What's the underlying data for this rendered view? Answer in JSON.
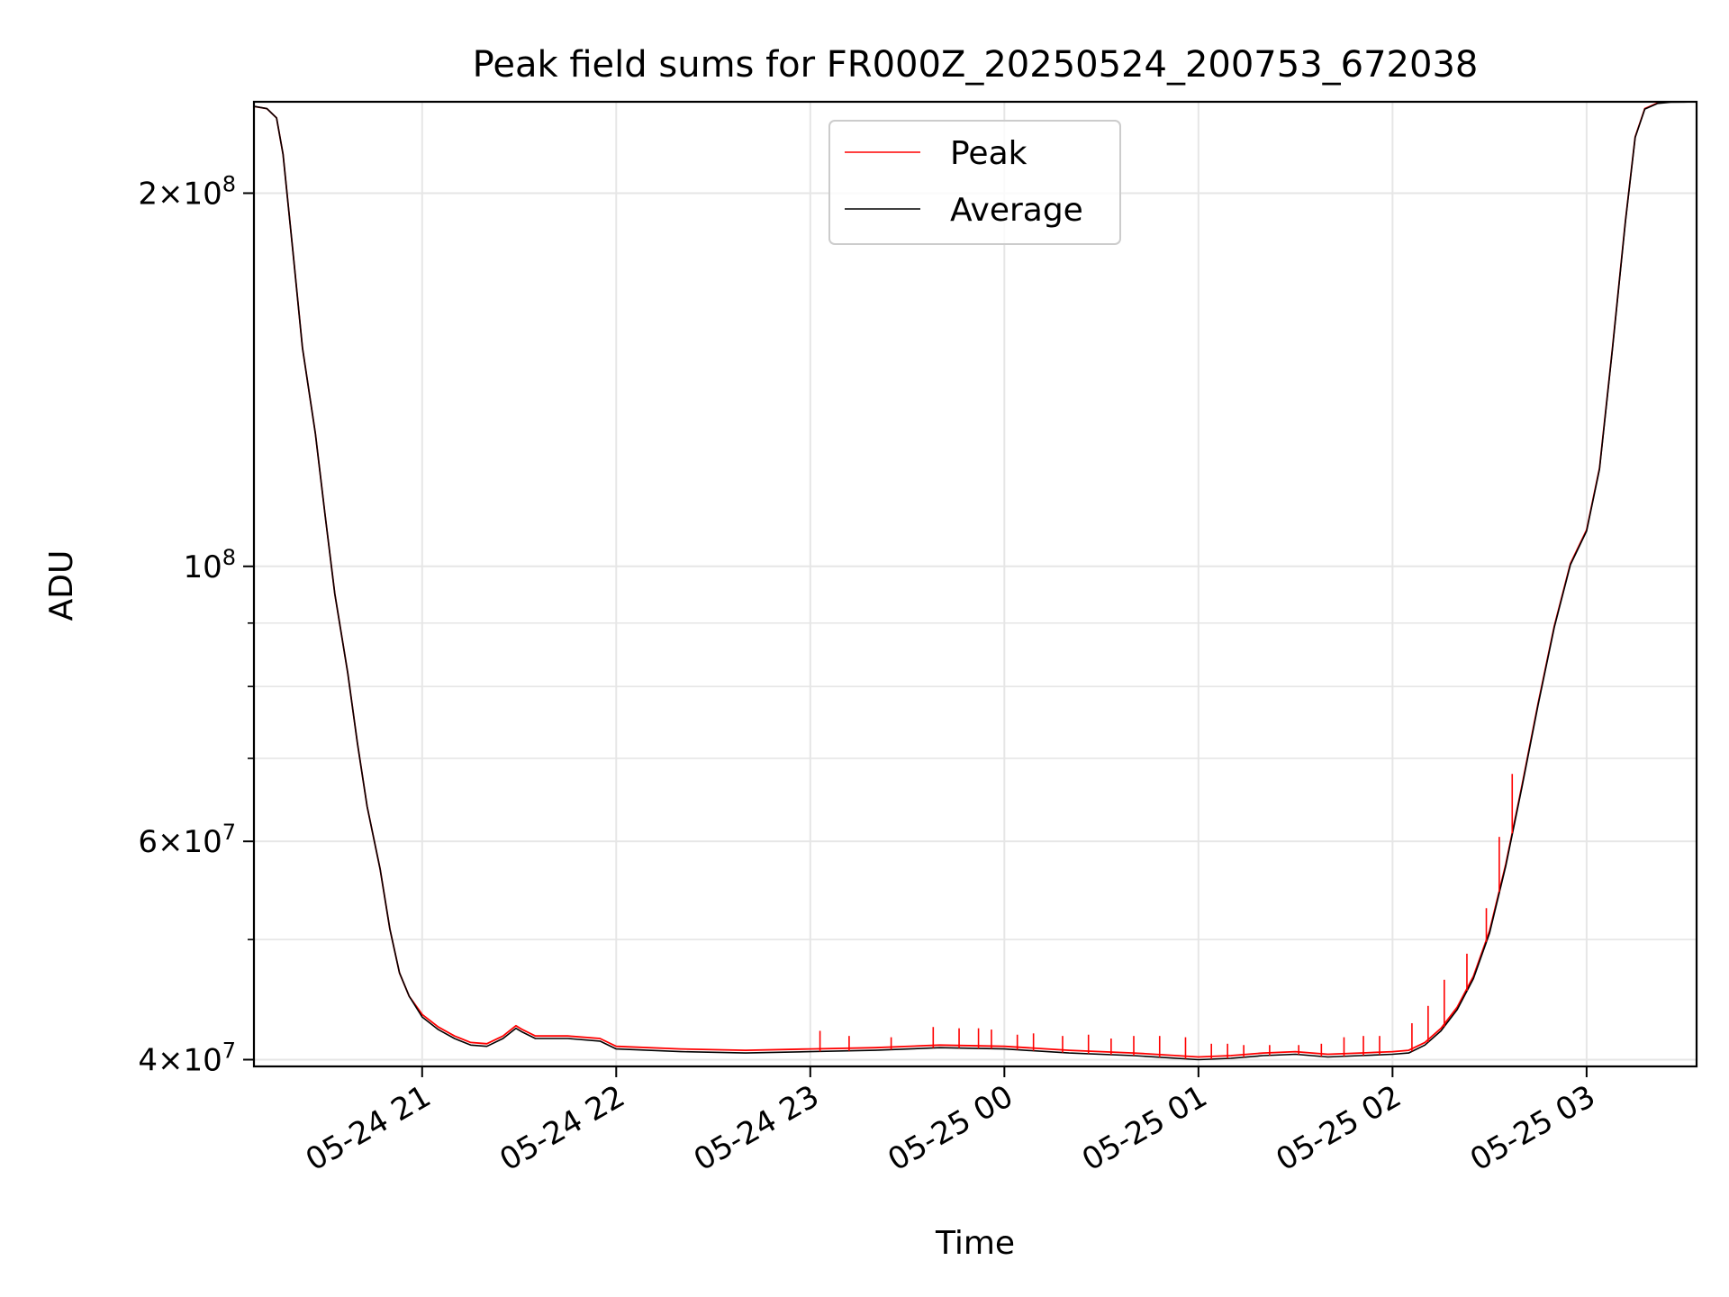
{
  "chart_data": {
    "type": "line",
    "title": "Peak field sums for FR000Z_20250524_200753_672038",
    "xlabel": "Time",
    "ylabel": "ADU",
    "y_scale": "log",
    "ylim": [
      39500000,
      237000000
    ],
    "xlim": [
      "2025-05-24 20:08",
      "2025-05-25 03:34"
    ],
    "x_ticks": [
      {
        "label": "05-24 21",
        "t": "2025-05-24 21:00"
      },
      {
        "label": "05-24 22",
        "t": "2025-05-24 22:00"
      },
      {
        "label": "05-24 23",
        "t": "2025-05-24 23:00"
      },
      {
        "label": "05-25 00",
        "t": "2025-05-25 00:00"
      },
      {
        "label": "05-25 01",
        "t": "2025-05-25 01:00"
      },
      {
        "label": "05-25 02",
        "t": "2025-05-25 02:00"
      },
      {
        "label": "05-25 03",
        "t": "2025-05-25 03:00"
      }
    ],
    "y_major_ticks": [
      {
        "label_base": "4",
        "label_mult": "×",
        "label_pow": "10",
        "label_exp": "7",
        "value": 40000000
      },
      {
        "label_base": "6",
        "label_mult": "×",
        "label_pow": "10",
        "label_exp": "7",
        "value": 60000000
      },
      {
        "label_base": "",
        "label_mult": "",
        "label_pow": "10",
        "label_exp": "8",
        "value": 100000000
      },
      {
        "label_base": "2",
        "label_mult": "×",
        "label_pow": "10",
        "label_exp": "8",
        "value": 200000000
      }
    ],
    "y_minor_ticks": [
      50000000,
      70000000,
      80000000,
      90000000
    ],
    "grid": true,
    "legend": {
      "location": "upper center"
    },
    "series": [
      {
        "name": "Peak",
        "color": "#ff0000",
        "x": [
          "2025-05-24 20:08",
          "2025-05-24 20:12",
          "2025-05-24 20:15",
          "2025-05-24 20:17",
          "2025-05-24 20:20",
          "2025-05-24 20:23",
          "2025-05-24 20:27",
          "2025-05-24 20:30",
          "2025-05-24 20:33",
          "2025-05-24 20:37",
          "2025-05-24 20:40",
          "2025-05-24 20:43",
          "2025-05-24 20:47",
          "2025-05-24 20:50",
          "2025-05-24 20:53",
          "2025-05-24 20:56",
          "2025-05-24 21:00",
          "2025-05-24 21:05",
          "2025-05-24 21:10",
          "2025-05-24 21:15",
          "2025-05-24 21:20",
          "2025-05-24 21:25",
          "2025-05-24 21:29",
          "2025-05-24 21:31",
          "2025-05-24 21:35",
          "2025-05-24 21:45",
          "2025-05-24 21:55",
          "2025-05-24 22:00",
          "2025-05-24 22:20",
          "2025-05-24 22:40",
          "2025-05-24 23:00",
          "2025-05-24 23:20",
          "2025-05-24 23:40",
          "2025-05-25 00:00",
          "2025-05-25 00:20",
          "2025-05-25 00:40",
          "2025-05-25 01:00",
          "2025-05-25 01:10",
          "2025-05-25 01:20",
          "2025-05-25 01:30",
          "2025-05-25 01:40",
          "2025-05-25 01:50",
          "2025-05-25 02:00",
          "2025-05-25 02:05",
          "2025-05-25 02:10",
          "2025-05-25 02:15",
          "2025-05-25 02:20",
          "2025-05-25 02:25",
          "2025-05-25 02:30",
          "2025-05-25 02:35",
          "2025-05-25 02:40",
          "2025-05-25 02:45",
          "2025-05-25 02:50",
          "2025-05-25 02:55",
          "2025-05-25 03:00",
          "2025-05-25 03:04",
          "2025-05-25 03:08",
          "2025-05-25 03:12",
          "2025-05-25 03:15",
          "2025-05-25 03:18",
          "2025-05-25 03:22",
          "2025-05-25 03:26",
          "2025-05-25 03:30",
          "2025-05-25 03:34"
        ],
        "y": [
          235000000,
          234000000,
          230000000,
          215000000,
          180000000,
          150000000,
          128000000,
          110000000,
          95000000,
          82000000,
          72000000,
          64000000,
          57000000,
          51000000,
          47000000,
          45000000,
          43500000,
          42500000,
          41800000,
          41300000,
          41200000,
          41800000,
          42600000,
          42300000,
          41800000,
          41800000,
          41600000,
          41000000,
          40800000,
          40700000,
          40800000,
          40900000,
          41100000,
          41000000,
          40700000,
          40500000,
          40200000,
          40300000,
          40500000,
          40600000,
          40400000,
          40500000,
          40600000,
          40700000,
          41300000,
          42400000,
          44100000,
          46700000,
          50800000,
          57500000,
          66500000,
          77500000,
          89500000,
          100500000,
          107000000,
          120000000,
          150000000,
          190000000,
          222000000,
          234000000,
          236500000,
          237000000,
          237000000,
          237000000
        ]
      },
      {
        "name": "Average",
        "color": "#000000",
        "x": [
          "2025-05-24 20:08",
          "2025-05-24 20:12",
          "2025-05-24 20:15",
          "2025-05-24 20:17",
          "2025-05-24 20:20",
          "2025-05-24 20:23",
          "2025-05-24 20:27",
          "2025-05-24 20:30",
          "2025-05-24 20:33",
          "2025-05-24 20:37",
          "2025-05-24 20:40",
          "2025-05-24 20:43",
          "2025-05-24 20:47",
          "2025-05-24 20:50",
          "2025-05-24 20:53",
          "2025-05-24 20:56",
          "2025-05-24 21:00",
          "2025-05-24 21:05",
          "2025-05-24 21:10",
          "2025-05-24 21:15",
          "2025-05-24 21:20",
          "2025-05-24 21:25",
          "2025-05-24 21:29",
          "2025-05-24 21:31",
          "2025-05-24 21:35",
          "2025-05-24 21:45",
          "2025-05-24 21:55",
          "2025-05-24 22:00",
          "2025-05-24 22:20",
          "2025-05-24 22:40",
          "2025-05-24 23:00",
          "2025-05-24 23:20",
          "2025-05-24 23:40",
          "2025-05-25 00:00",
          "2025-05-25 00:20",
          "2025-05-25 00:40",
          "2025-05-25 01:00",
          "2025-05-25 01:10",
          "2025-05-25 01:20",
          "2025-05-25 01:30",
          "2025-05-25 01:40",
          "2025-05-25 01:50",
          "2025-05-25 02:00",
          "2025-05-25 02:05",
          "2025-05-25 02:10",
          "2025-05-25 02:15",
          "2025-05-25 02:20",
          "2025-05-25 02:25",
          "2025-05-25 02:30",
          "2025-05-25 02:35",
          "2025-05-25 02:40",
          "2025-05-25 02:45",
          "2025-05-25 02:50",
          "2025-05-25 02:55",
          "2025-05-25 03:00",
          "2025-05-25 03:04",
          "2025-05-25 03:08",
          "2025-05-25 03:12",
          "2025-05-25 03:15",
          "2025-05-25 03:18",
          "2025-05-25 03:22",
          "2025-05-25 03:26",
          "2025-05-25 03:30",
          "2025-05-25 03:34"
        ],
        "y": [
          235000000,
          234000000,
          230000000,
          215000000,
          180000000,
          150000000,
          128000000,
          110000000,
          95000000,
          82000000,
          72000000,
          64000000,
          57000000,
          51000000,
          47000000,
          45000000,
          43300000,
          42300000,
          41600000,
          41100000,
          41000000,
          41600000,
          42400000,
          42100000,
          41600000,
          41600000,
          41400000,
          40800000,
          40600000,
          40500000,
          40600000,
          40700000,
          40900000,
          40800000,
          40500000,
          40300000,
          40000000,
          40100000,
          40300000,
          40400000,
          40200000,
          40300000,
          40400000,
          40500000,
          41100000,
          42200000,
          43900000,
          46500000,
          50600000,
          57300000,
          66300000,
          77300000,
          89300000,
          100300000,
          106800000,
          119800000,
          149800000,
          189800000,
          221800000,
          233800000,
          236300000,
          236800000,
          236900000,
          237000000
        ]
      }
    ],
    "peak_spikes": {
      "t": [
        "2025-05-24 23:03",
        "2025-05-24 23:12",
        "2025-05-24 23:25",
        "2025-05-24 23:38",
        "2025-05-24 23:46",
        "2025-05-24 23:52",
        "2025-05-24 23:56",
        "2025-05-25 00:04",
        "2025-05-25 00:09",
        "2025-05-25 00:18",
        "2025-05-25 00:26",
        "2025-05-25 00:33",
        "2025-05-25 00:40",
        "2025-05-25 00:48",
        "2025-05-25 00:56",
        "2025-05-25 01:04",
        "2025-05-25 01:09",
        "2025-05-25 01:14",
        "2025-05-25 01:22",
        "2025-05-25 01:31",
        "2025-05-25 01:38",
        "2025-05-25 01:45",
        "2025-05-25 01:51",
        "2025-05-25 01:56",
        "2025-05-25 02:06",
        "2025-05-25 02:11",
        "2025-05-25 02:16",
        "2025-05-25 02:23",
        "2025-05-25 02:29",
        "2025-05-25 02:33",
        "2025-05-25 02:37"
      ],
      "y": [
        42200000,
        41800000,
        41700000,
        42500000,
        42400000,
        42400000,
        42300000,
        41900000,
        42000000,
        41800000,
        41900000,
        41600000,
        41800000,
        41800000,
        41700000,
        41200000,
        41200000,
        41100000,
        41100000,
        41100000,
        41200000,
        41700000,
        41800000,
        41800000,
        42800000,
        44200000,
        46400000,
        48700000,
        53000000,
        60500000,
        68000000
      ]
    }
  }
}
